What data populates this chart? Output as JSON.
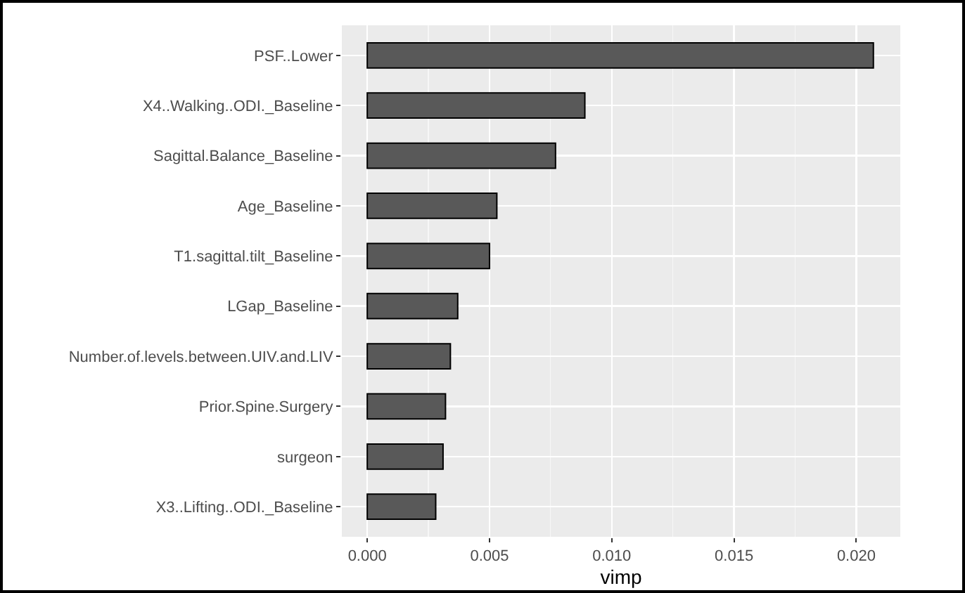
{
  "chart_data": {
    "type": "bar",
    "orientation": "horizontal",
    "xlabel": "vimp",
    "categories": [
      "PSF..Lower",
      "X4..Walking..ODI._Baseline",
      "Sagittal.Balance_Baseline",
      "Age_Baseline",
      "T1.sagittal.tilt_Baseline",
      "LGap_Baseline",
      "Number.of.levels.between.UIV.and.LIV",
      "Prior.Spine.Surgery",
      "surgeon",
      "X3..Lifting..ODI._Baseline"
    ],
    "values": [
      0.0207,
      0.0089,
      0.0077,
      0.0053,
      0.005,
      0.0037,
      0.0034,
      0.0032,
      0.0031,
      0.0028
    ],
    "color": "#595959",
    "xlim": [
      -0.00104,
      0.0218
    ],
    "xticks": [
      {
        "value": 0,
        "label": "0.000"
      },
      {
        "value": 0.005,
        "label": "0.005"
      },
      {
        "value": 0.01,
        "label": "0.010"
      },
      {
        "value": 0.015,
        "label": "0.015"
      },
      {
        "value": 0.02,
        "label": "0.020"
      }
    ],
    "grid": true
  }
}
